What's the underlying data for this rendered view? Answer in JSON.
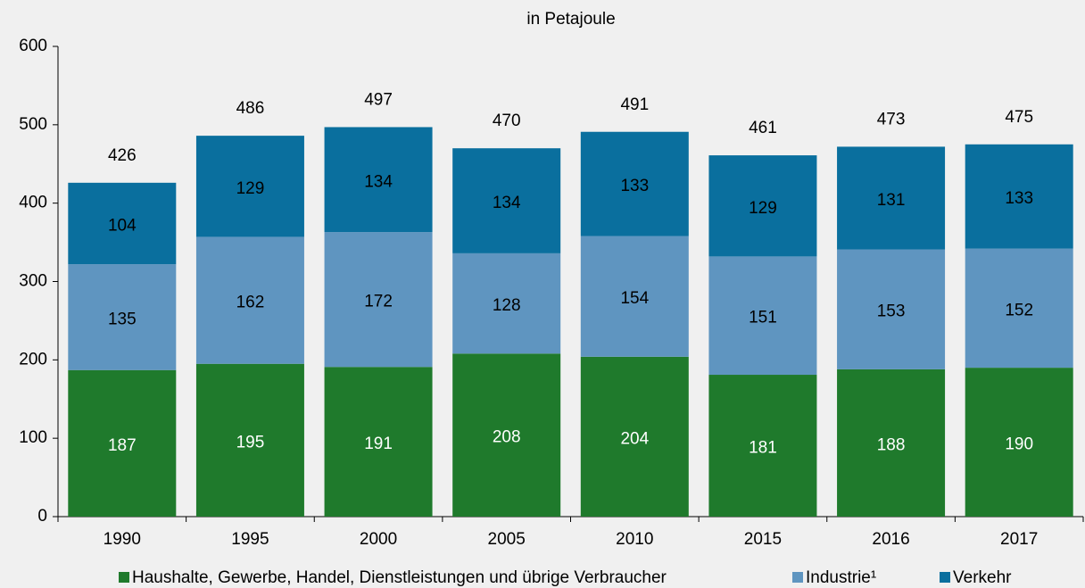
{
  "chart_data": {
    "type": "stacked_bar",
    "subtitle": "in Petajoule",
    "categories": [
      "1990",
      "1995",
      "2000",
      "2005",
      "2010",
      "2015",
      "2016",
      "2017"
    ],
    "series": [
      {
        "name": "Haushalte, Gewerbe, Handel, Dienstleistungen und übrige Verbraucher",
        "color": "#1f7a2c",
        "values": [
          187,
          195,
          191,
          208,
          204,
          181,
          188,
          190
        ]
      },
      {
        "name": "Industrie¹",
        "color": "#5f95c0",
        "values": [
          135,
          162,
          172,
          128,
          154,
          151,
          153,
          152
        ]
      },
      {
        "name": "Verkehr",
        "color": "#0a6f9e",
        "values": [
          104,
          129,
          134,
          134,
          133,
          129,
          131,
          133
        ]
      }
    ],
    "totals": [
      426,
      486,
      497,
      470,
      491,
      461,
      473,
      475
    ],
    "ylim": [
      0,
      600
    ],
    "yticks": [
      0,
      100,
      200,
      300,
      400,
      500,
      600
    ],
    "grid": false
  }
}
